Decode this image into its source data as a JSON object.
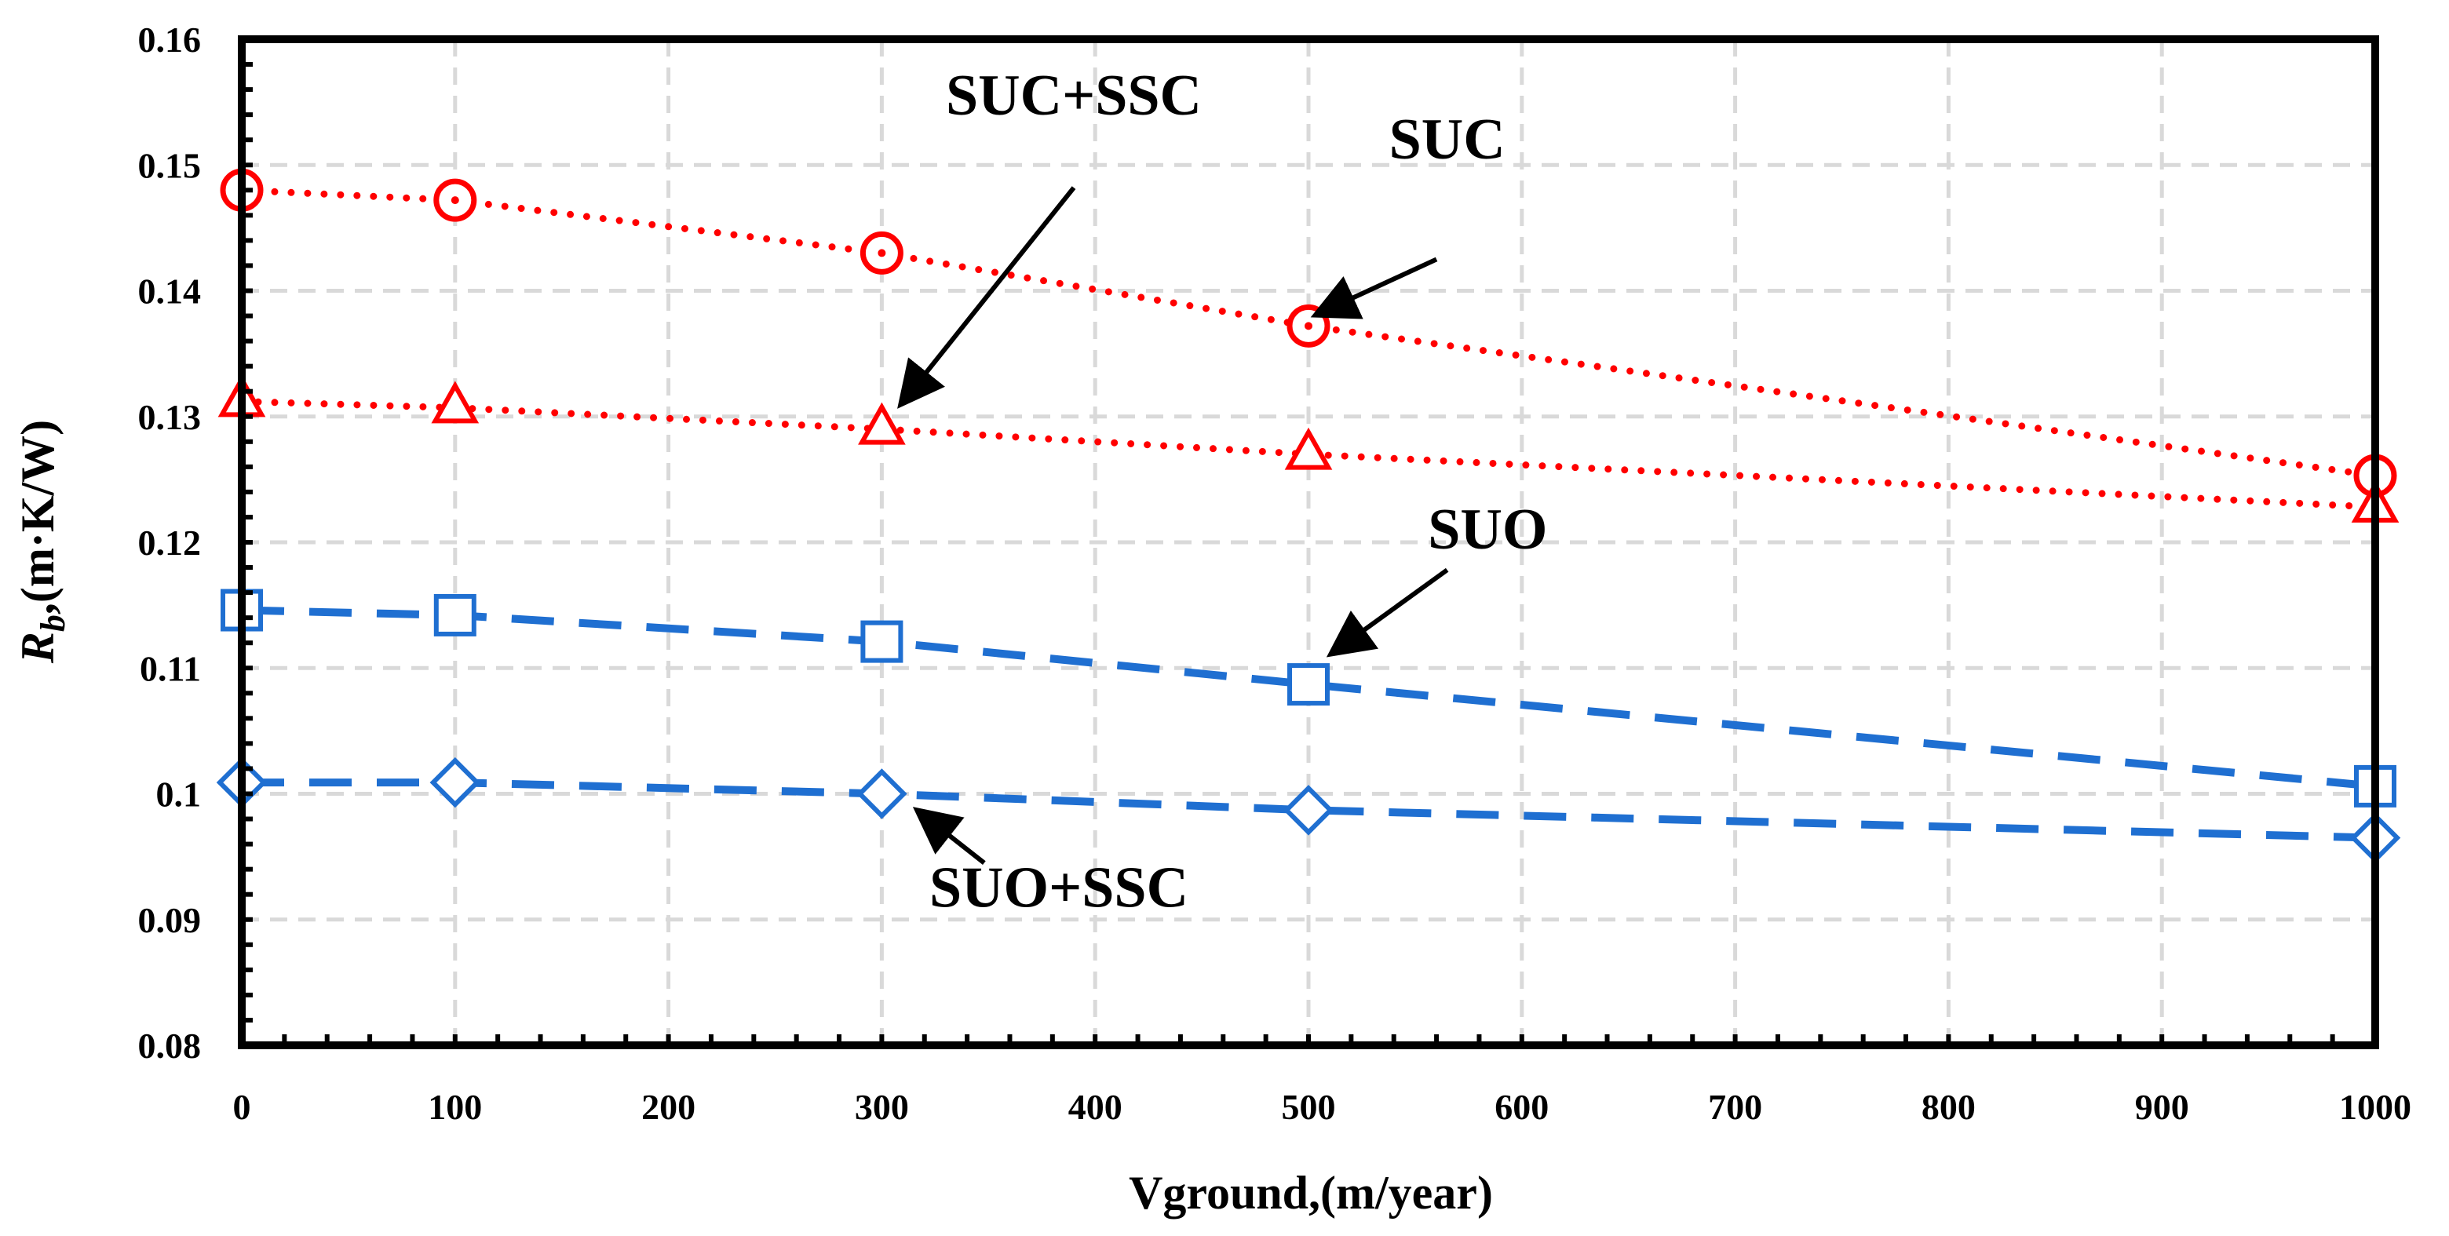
{
  "chart_data": {
    "type": "line",
    "title": "",
    "xlabel": "Vground,(m/year)",
    "ylabel_main": "R",
    "ylabel_sub": "b",
    "ylabel_rest": ",(m·K/W)",
    "xlim": [
      0,
      1000
    ],
    "ylim": [
      0.08,
      0.16
    ],
    "grid": true,
    "legend": "none",
    "x_ticks": [
      0,
      100,
      200,
      300,
      400,
      500,
      600,
      700,
      800,
      900,
      1000
    ],
    "x_tick_labels": [
      "0",
      "100",
      "200",
      "300",
      "400",
      "500",
      "600",
      "700",
      "800",
      "900",
      "1000"
    ],
    "y_ticks": [
      0.08,
      0.09,
      0.1,
      0.11,
      0.12,
      0.13,
      0.14,
      0.15,
      0.16
    ],
    "y_tick_labels": [
      "0.08",
      "0.09",
      "0.1",
      "0.11",
      "0.12",
      "0.13",
      "0.14",
      "0.15",
      "0.16"
    ],
    "series": [
      {
        "key": "suc",
        "marker": "circle",
        "color": "#ff0000",
        "dash": "dotted",
        "x": [
          0,
          100,
          300,
          500,
          1000
        ],
        "y": [
          0.148,
          0.1472,
          0.143,
          0.1372,
          0.1253
        ]
      },
      {
        "key": "suc-ssc",
        "marker": "triangle",
        "color": "#ff0000",
        "dash": "dotted",
        "x": [
          0,
          100,
          300,
          500,
          1000
        ],
        "y": [
          0.1312,
          0.1307,
          0.129,
          0.127,
          0.1228
        ]
      },
      {
        "key": "suo",
        "marker": "square",
        "color": "#1f6fd1",
        "dash": "dashed",
        "x": [
          0,
          100,
          300,
          500,
          1000
        ],
        "y": [
          0.1146,
          0.1142,
          0.1121,
          0.1087,
          0.1006
        ]
      },
      {
        "key": "suo-ssc",
        "marker": "diamond",
        "color": "#1f6fd1",
        "dash": "dashed",
        "x": [
          0,
          100,
          300,
          500,
          1000
        ],
        "y": [
          0.1009,
          0.1009,
          0.1,
          0.0987,
          0.0965
        ]
      }
    ],
    "annotations": [
      {
        "key": "suc",
        "text": "SUC",
        "label_x": 565,
        "label_y": 0.1505,
        "arrow_from_x": 560,
        "arrow_from_y": 0.1425,
        "arrow_to_x": 505,
        "arrow_to_y": 0.1382
      },
      {
        "key": "suc-ssc",
        "text": "SUC+SSC",
        "label_x": 390,
        "label_y": 0.154,
        "arrow_from_x": 390,
        "arrow_from_y": 0.1482,
        "arrow_to_x": 310,
        "arrow_to_y": 0.1312
      },
      {
        "key": "suo",
        "text": "SUO",
        "label_x": 584,
        "label_y": 0.1195,
        "arrow_from_x": 565,
        "arrow_from_y": 0.1178,
        "arrow_to_x": 512,
        "arrow_to_y": 0.1113
      },
      {
        "key": "suo-ssc",
        "text": "SUO+SSC",
        "label_x": 383,
        "label_y": 0.091,
        "arrow_from_x": 348,
        "arrow_from_y": 0.0945,
        "arrow_to_x": 318,
        "arrow_to_y": 0.0985
      }
    ]
  }
}
